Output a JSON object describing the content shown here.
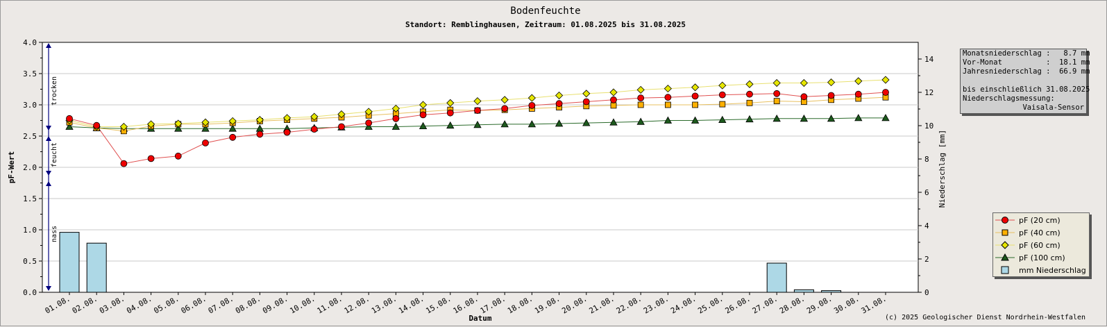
{
  "title": "Bodenfeuchte",
  "subtitle": "Standort: Remblinghausen, Zeitraum: 01.08.2025 bis 31.08.2025",
  "left_axis_label": "pF-Wert",
  "right_axis_label": "Niederschlag [mm]",
  "x_axis_label": "Datum",
  "zone_labels": {
    "dry": "trocken",
    "moist": "feucht",
    "wet": "nass"
  },
  "copyright": "(c) 2025 Geologischer Dienst Nordrhein-Westfalen",
  "info_box": {
    "line1": "Monatsniederschlag :   8.7 mm",
    "line2": "Vor-Monat          :  18.1 mm",
    "line3": "Jahresniederschlag :  66.9 mm",
    "line4": "bis einschließlich 31.08.2025",
    "line5": "Niederschlagsmessung:",
    "line6": "Vaisala-Sensor"
  },
  "legend": {
    "pf20": "pF (20 cm)",
    "pf40": "pF (40 cm)",
    "pf60": "pF (60 cm)",
    "pf100": "pF (100 cm)",
    "rain": "mm  Niederschlag"
  },
  "colors": {
    "pf20": "#ee0000",
    "pf40": "#ffb000",
    "pf60": "#e6e600",
    "pf100": "#1d5a1d",
    "rain_fill": "#add8e6",
    "line20": "#e05050",
    "line40": "#e8c060",
    "line60": "#e8e070",
    "line100": "#2a6a2a"
  },
  "chart_data": {
    "type": "line",
    "title": "Bodenfeuchte",
    "xlabel": "Datum",
    "ylabel": "pF-Wert",
    "y2label": "Niederschlag [mm]",
    "ylim": [
      0,
      4
    ],
    "y2lim": [
      0,
      15
    ],
    "yticks": [
      "0.0",
      "0.5",
      "1.0",
      "1.5",
      "2.0",
      "2.5",
      "3.0",
      "3.5",
      "4.0"
    ],
    "y2ticks": [
      "0",
      "2",
      "4",
      "6",
      "8",
      "10",
      "12",
      "14"
    ],
    "grid": true,
    "legend_position": "right",
    "categories": [
      "01.08.",
      "02.08.",
      "03.08.",
      "04.08.",
      "05.08.",
      "06.08.",
      "07.08.",
      "08.08.",
      "09.08.",
      "10.08.",
      "11.08.",
      "12.08.",
      "13.08.",
      "14.08.",
      "15.08.",
      "16.08.",
      "17.08.",
      "18.08.",
      "19.08.",
      "20.08.",
      "21.08.",
      "22.08.",
      "23.08.",
      "24.08.",
      "25.08.",
      "26.08.",
      "27.08.",
      "28.08.",
      "29.08.",
      "30.08.",
      "31.08."
    ],
    "series": [
      {
        "name": "pF (20 cm)",
        "key": "pf20",
        "marker": "circle",
        "values": [
          2.78,
          2.67,
          2.06,
          2.14,
          2.18,
          2.39,
          2.48,
          2.53,
          2.56,
          2.61,
          2.65,
          2.71,
          2.78,
          2.84,
          2.87,
          2.91,
          2.94,
          2.99,
          3.02,
          3.05,
          3.08,
          3.11,
          3.12,
          3.14,
          3.16,
          3.17,
          3.18,
          3.13,
          3.15,
          3.17,
          3.2
        ]
      },
      {
        "name": "pF (40 cm)",
        "key": "pf40",
        "marker": "square",
        "values": [
          2.72,
          2.63,
          2.58,
          2.66,
          2.69,
          2.69,
          2.71,
          2.74,
          2.76,
          2.78,
          2.8,
          2.83,
          2.86,
          2.89,
          2.92,
          2.91,
          2.92,
          2.94,
          2.96,
          2.98,
          2.99,
          3.0,
          3.0,
          3.0,
          3.01,
          3.03,
          3.06,
          3.05,
          3.08,
          3.1,
          3.12
        ]
      },
      {
        "name": "pF (60 cm)",
        "key": "pf60",
        "marker": "diamond",
        "values": [
          2.75,
          2.65,
          2.65,
          2.69,
          2.7,
          2.72,
          2.74,
          2.76,
          2.79,
          2.81,
          2.85,
          2.89,
          2.94,
          3.0,
          3.03,
          3.06,
          3.08,
          3.11,
          3.15,
          3.18,
          3.2,
          3.24,
          3.26,
          3.28,
          3.31,
          3.33,
          3.35,
          3.35,
          3.36,
          3.38,
          3.4
        ]
      },
      {
        "name": "pF (100 cm)",
        "key": "pf100",
        "marker": "triangle",
        "values": [
          2.65,
          2.63,
          2.62,
          2.62,
          2.62,
          2.62,
          2.62,
          2.62,
          2.62,
          2.63,
          2.64,
          2.65,
          2.65,
          2.66,
          2.67,
          2.68,
          2.69,
          2.69,
          2.7,
          2.71,
          2.72,
          2.73,
          2.75,
          2.75,
          2.76,
          2.77,
          2.78,
          2.78,
          2.78,
          2.79,
          2.79
        ]
      },
      {
        "name": "mm  Niederschlag",
        "key": "rain",
        "type": "bar",
        "axis": "right",
        "values": [
          3.6,
          2.95,
          0,
          0,
          0,
          0,
          0,
          0,
          0,
          0,
          0,
          0,
          0,
          0,
          0,
          0,
          0,
          0,
          0,
          0,
          0,
          0,
          0,
          0,
          0,
          0,
          1.75,
          0.15,
          0.1,
          0,
          0
        ]
      }
    ]
  }
}
